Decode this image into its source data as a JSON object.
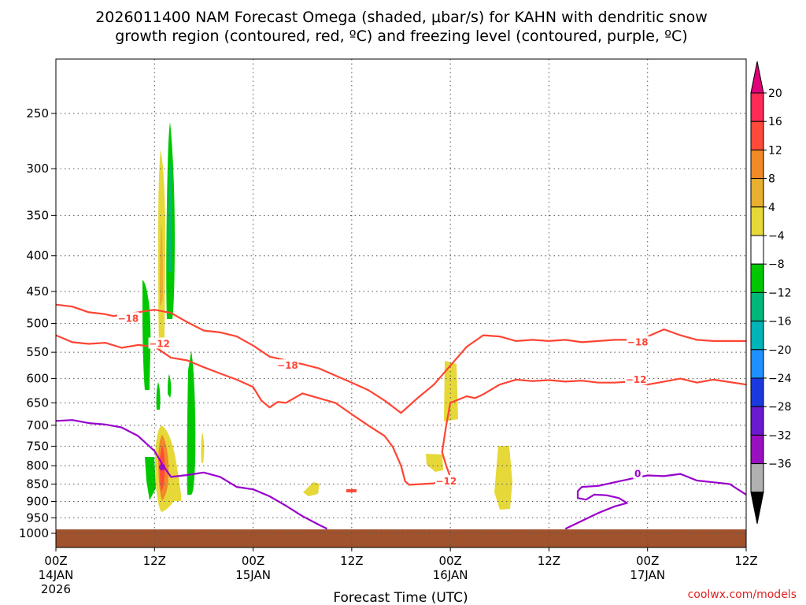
{
  "title_line1": "2026011400 NAM Forecast Omega (shaded, μbar/s) for KAHN with dendritic snow",
  "title_line2": "growth region (contoured, red, ºC) and freezing level (contoured, purple, ºC)",
  "credit": "coolwx.com/models",
  "colors": {
    "dgz": "#ff4433",
    "freezing": "#9900cc",
    "ground": "#a0522d"
  },
  "chart_data": {
    "type": "heatmap",
    "xlabel": "Forecast Time (UTC)",
    "ylabel": "",
    "y_scale": "log-pressure",
    "ylim": [
      1030,
      200
    ],
    "xlim": [
      0,
      84
    ],
    "grid": true,
    "y_ticks": [
      250,
      300,
      350,
      400,
      450,
      500,
      550,
      600,
      650,
      700,
      750,
      800,
      850,
      900,
      950,
      1000
    ],
    "x_ticks": [
      {
        "hour": 0,
        "line1": "00Z",
        "line2": "14JAN",
        "line3": "2026"
      },
      {
        "hour": 12,
        "line1": "12Z",
        "line2": "",
        "line3": ""
      },
      {
        "hour": 24,
        "line1": "00Z",
        "line2": "15JAN",
        "line3": ""
      },
      {
        "hour": 36,
        "line1": "12Z",
        "line2": "",
        "line3": ""
      },
      {
        "hour": 48,
        "line1": "00Z",
        "line2": "16JAN",
        "line3": ""
      },
      {
        "hour": 60,
        "line1": "12Z",
        "line2": "",
        "line3": ""
      },
      {
        "hour": 72,
        "line1": "00Z",
        "line2": "17JAN",
        "line3": ""
      },
      {
        "hour": 84,
        "line1": "12Z",
        "line2": "",
        "line3": ""
      }
    ],
    "colorbar": {
      "labels": [
        "20",
        "16",
        "12",
        "8",
        "4",
        "−4",
        "−8",
        "−12",
        "−16",
        "−20",
        "−24",
        "−28",
        "−32",
        "−36"
      ],
      "colors": [
        "#ff2a55",
        "#ff4a3a",
        "#f08a28",
        "#e8b030",
        "#e6d838",
        "#ffffff",
        "#00c800",
        "#00b87a",
        "#00b4b8",
        "#1e90ff",
        "#1a3ae0",
        "#6a1ad0",
        "#9a10c0",
        "#b0b0b0"
      ],
      "top_color": "#e0007a",
      "bottom_color": "#000000"
    },
    "contour_labels": [
      {
        "text": "−18",
        "hour": 8.8,
        "pressure": 492,
        "color": "#ff4433"
      },
      {
        "text": "−12",
        "hour": 12.6,
        "pressure": 535,
        "color": "#ff4433"
      },
      {
        "text": "−18",
        "hour": 28.2,
        "pressure": 575,
        "color": "#ff4433"
      },
      {
        "text": "−12",
        "hour": 47.5,
        "pressure": 842,
        "color": "#ff4433"
      },
      {
        "text": "−18",
        "hour": 70.8,
        "pressure": 532,
        "color": "#ff4433"
      },
      {
        "text": "−12",
        "hour": 70.6,
        "pressure": 602,
        "color": "#ff4433"
      },
      {
        "text": "0",
        "hour": 70.8,
        "pressure": 822,
        "color": "#9900cc"
      }
    ],
    "series": [
      {
        "name": "-18 C isotherm (upper)",
        "color": "#ff4433",
        "points": [
          [
            0,
            470
          ],
          [
            2,
            473
          ],
          [
            4,
            482
          ],
          [
            6,
            485
          ],
          [
            7,
            488
          ],
          [
            10,
            482
          ],
          [
            12,
            478
          ],
          [
            14,
            483
          ],
          [
            16,
            498
          ],
          [
            18,
            512
          ],
          [
            20,
            515
          ],
          [
            22,
            522
          ],
          [
            24,
            538
          ],
          [
            26,
            558
          ],
          [
            28,
            565
          ],
          [
            30,
            572
          ],
          [
            32,
            580
          ],
          [
            36,
            608
          ],
          [
            38,
            623
          ],
          [
            40,
            645
          ],
          [
            42,
            672
          ],
          [
            44,
            640
          ],
          [
            46,
            612
          ],
          [
            48,
            575
          ],
          [
            50,
            540
          ],
          [
            52,
            520
          ],
          [
            54,
            522
          ],
          [
            56,
            530
          ],
          [
            58,
            528
          ],
          [
            60,
            530
          ],
          [
            62,
            528
          ],
          [
            64,
            532
          ],
          [
            66,
            530
          ],
          [
            68,
            528
          ],
          [
            70,
            528
          ],
          [
            72,
            522
          ],
          [
            74,
            510
          ],
          [
            76,
            520
          ],
          [
            78,
            528
          ],
          [
            80,
            530
          ],
          [
            84,
            530
          ]
        ]
      },
      {
        "name": "-12 C isotherm",
        "color": "#ff4433",
        "points": [
          [
            0,
            520
          ],
          [
            2,
            532
          ],
          [
            4,
            535
          ],
          [
            6,
            533
          ],
          [
            8,
            542
          ],
          [
            10,
            537
          ],
          [
            12,
            540
          ],
          [
            14,
            560
          ],
          [
            16,
            565
          ],
          [
            18,
            578
          ],
          [
            20,
            590
          ],
          [
            22,
            602
          ],
          [
            24,
            617
          ],
          [
            25,
            645
          ],
          [
            26,
            660
          ],
          [
            27,
            648
          ],
          [
            28,
            650
          ],
          [
            30,
            630
          ],
          [
            32,
            640
          ],
          [
            34,
            650
          ],
          [
            36,
            675
          ],
          [
            38,
            700
          ],
          [
            40,
            725
          ],
          [
            41,
            752
          ],
          [
            42,
            800
          ],
          [
            42.5,
            842
          ],
          [
            43,
            852
          ],
          [
            46,
            848
          ],
          [
            48,
            830
          ],
          [
            47.5,
            800
          ],
          [
            47,
            765
          ],
          [
            47.5,
            700
          ],
          [
            48,
            650
          ],
          [
            50,
            636
          ],
          [
            51,
            640
          ],
          [
            52,
            632
          ],
          [
            54,
            612
          ],
          [
            56,
            602
          ],
          [
            58,
            605
          ],
          [
            60,
            603
          ],
          [
            62,
            606
          ],
          [
            64,
            604
          ],
          [
            66,
            608
          ],
          [
            68,
            608
          ],
          [
            70,
            606
          ],
          [
            72,
            612
          ],
          [
            74,
            606
          ],
          [
            76,
            600
          ],
          [
            78,
            608
          ],
          [
            80,
            602
          ],
          [
            84,
            612
          ]
        ]
      },
      {
        "name": "0 C freezing level",
        "color": "#9900cc",
        "points": [
          [
            0,
            690
          ],
          [
            2,
            688
          ],
          [
            4,
            695
          ],
          [
            6,
            698
          ],
          [
            8,
            705
          ],
          [
            10,
            725
          ],
          [
            12,
            762
          ],
          [
            13,
            798
          ],
          [
            14,
            830
          ],
          [
            16,
            825
          ],
          [
            18,
            818
          ],
          [
            20,
            830
          ],
          [
            22,
            858
          ],
          [
            24,
            865
          ],
          [
            26,
            885
          ],
          [
            28,
            913
          ],
          [
            30,
            945
          ],
          [
            32,
            972
          ],
          [
            33,
            985
          ]
        ]
      },
      {
        "name": "0 C freezing level (east)",
        "color": "#9900cc",
        "points": [
          [
            62,
            985
          ],
          [
            64,
            960
          ],
          [
            66,
            935
          ],
          [
            68,
            915
          ],
          [
            69.5,
            905
          ],
          [
            68.5,
            890
          ],
          [
            67,
            882
          ],
          [
            65.5,
            880
          ],
          [
            64.5,
            895
          ],
          [
            63.5,
            890
          ],
          [
            63.5,
            870
          ],
          [
            64,
            858
          ],
          [
            66,
            855
          ],
          [
            68,
            845
          ],
          [
            70,
            835
          ],
          [
            72,
            826
          ],
          [
            74,
            828
          ],
          [
            76,
            822
          ],
          [
            78,
            840
          ],
          [
            80,
            845
          ],
          [
            82,
            850
          ],
          [
            84,
            880
          ]
        ]
      }
    ]
  }
}
